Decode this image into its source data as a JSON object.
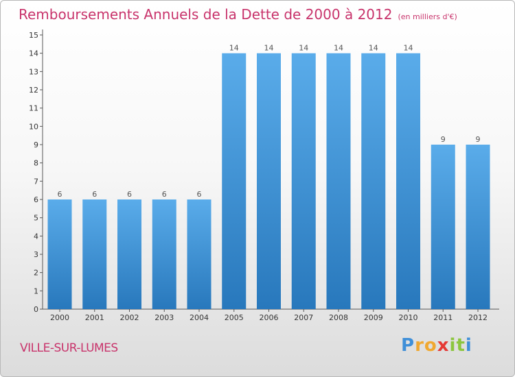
{
  "header": {
    "title": "Remboursements Annuels de la Dette de 2000 à 2012",
    "subtitle": "(en milliers d'€)"
  },
  "footer": {
    "town": "VILLE-SUR-LUMES",
    "logo_letters": [
      "P",
      "r",
      "o",
      "x",
      "i",
      "t",
      "i"
    ],
    "logo_colors": [
      "#3f8fd8",
      "#f0a830",
      "#f0a830",
      "#e53935",
      "#8cc63f",
      "#8cc63f",
      "#3f8fd8"
    ]
  },
  "chart_data": {
    "type": "bar",
    "title": "Remboursements Annuels de la Dette de 2000 à 2012",
    "categories": [
      "2000",
      "2001",
      "2002",
      "2003",
      "2004",
      "2005",
      "2006",
      "2007",
      "2008",
      "2009",
      "2010",
      "2011",
      "2012"
    ],
    "values": [
      6,
      6,
      6,
      6,
      6,
      14,
      14,
      14,
      14,
      14,
      14,
      9,
      9
    ],
    "data_labels": [
      "6",
      "6",
      "6",
      "6",
      "6",
      "14",
      "14",
      "14",
      "14",
      "14",
      "14",
      "9",
      "9"
    ],
    "yticks": [
      "0",
      "1",
      "2",
      "3",
      "4",
      "5",
      "6",
      "7",
      "8",
      "9",
      "10",
      "11",
      "12",
      "13",
      "14",
      "15"
    ],
    "ylim": [
      0,
      15
    ],
    "grid": false,
    "bar_color_top": "#5aacea",
    "bar_color_bottom": "#2878bc",
    "axis_color": "#555555"
  }
}
